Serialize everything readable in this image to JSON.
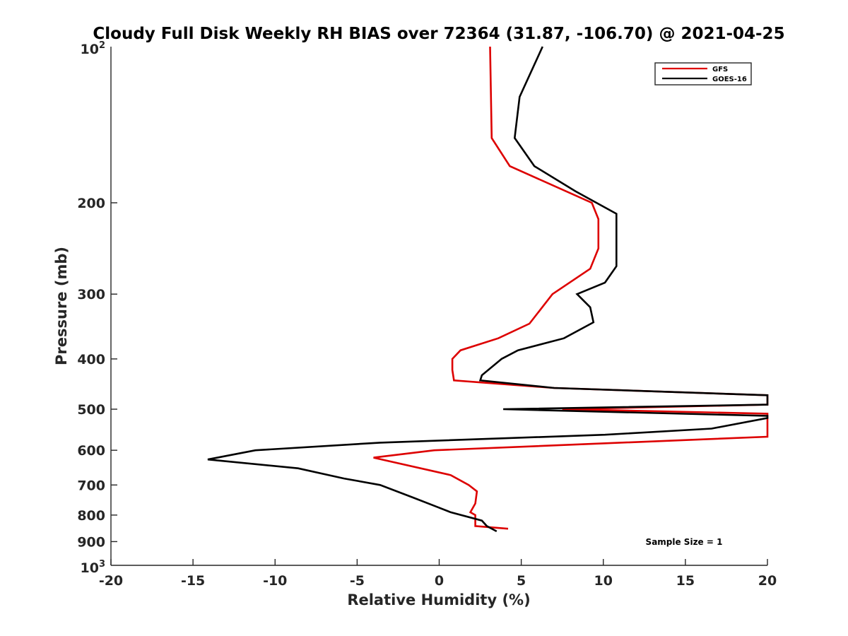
{
  "chart_data": {
    "type": "line",
    "title": "Cloudy Full Disk Weekly RH BIAS over 72364 (31.87, -106.70) @ 2021-04-25",
    "xlabel": "Relative Humidity (%)",
    "ylabel": "Pressure (mb)",
    "xlim": [
      -20,
      20
    ],
    "ylim": [
      100,
      1000
    ],
    "y_scale": "log",
    "y_reversed": true,
    "grid": false,
    "legend_position": "top-right",
    "x_ticks": [
      -20,
      -15,
      -10,
      -5,
      0,
      5,
      10,
      15,
      20
    ],
    "x_tick_labels": [
      "-20",
      "-15",
      "-10",
      "-5",
      "0",
      "5",
      "10",
      "15",
      "20"
    ],
    "y_ticks": [
      200,
      300,
      400,
      500,
      600,
      700,
      800,
      900
    ],
    "y_tick_labels": [
      "200",
      "300",
      "400",
      "500",
      "600",
      "700",
      "800",
      "900"
    ],
    "y_end_labels": {
      "top_base": "10",
      "top_exp": "2",
      "bottom_base": "10",
      "bottom_exp": "3"
    },
    "annotation": "Sample Size = 1",
    "series": [
      {
        "name": "GFS",
        "color": "#dd0000",
        "points": [
          [
            3.1,
            100
          ],
          [
            3.2,
            150
          ],
          [
            4.3,
            170
          ],
          [
            9.3,
            200
          ],
          [
            9.7,
            215
          ],
          [
            9.7,
            245
          ],
          [
            9.2,
            268
          ],
          [
            6.9,
            300
          ],
          [
            5.5,
            342
          ],
          [
            3.6,
            365
          ],
          [
            1.3,
            385
          ],
          [
            0.8,
            400
          ],
          [
            0.8,
            420
          ],
          [
            0.9,
            440
          ],
          [
            7.0,
            455
          ],
          [
            20.0,
            470
          ],
          [
            20.0,
            490
          ],
          [
            7.5,
            500
          ],
          [
            20.0,
            510
          ],
          [
            20.0,
            565
          ],
          [
            -0.3,
            600
          ],
          [
            -4.0,
            620
          ],
          [
            0.7,
            670
          ],
          [
            1.8,
            700
          ],
          [
            2.3,
            720
          ],
          [
            2.2,
            760
          ],
          [
            1.9,
            790
          ],
          [
            2.2,
            800
          ],
          [
            2.2,
            840
          ],
          [
            4.2,
            850
          ]
        ]
      },
      {
        "name": "GOES-16",
        "color": "#000000",
        "points": [
          [
            6.3,
            100
          ],
          [
            4.9,
            125
          ],
          [
            4.6,
            150
          ],
          [
            5.8,
            170
          ],
          [
            8.3,
            190
          ],
          [
            10.8,
            210
          ],
          [
            10.8,
            265
          ],
          [
            10.1,
            285
          ],
          [
            8.4,
            300
          ],
          [
            9.2,
            318
          ],
          [
            9.4,
            340
          ],
          [
            7.6,
            365
          ],
          [
            4.8,
            385
          ],
          [
            3.8,
            400
          ],
          [
            2.6,
            430
          ],
          [
            2.5,
            440
          ],
          [
            7.0,
            455
          ],
          [
            20.0,
            470
          ],
          [
            20.0,
            490
          ],
          [
            3.9,
            500
          ],
          [
            20.0,
            515
          ],
          [
            20.0,
            520
          ],
          [
            16.6,
            545
          ],
          [
            10.1,
            560
          ],
          [
            -3.6,
            580
          ],
          [
            -11.2,
            600
          ],
          [
            -14.1,
            625
          ],
          [
            -8.6,
            650
          ],
          [
            -5.8,
            680
          ],
          [
            -3.6,
            700
          ],
          [
            -1.6,
            740
          ],
          [
            -0.2,
            770
          ],
          [
            0.7,
            790
          ],
          [
            2.6,
            820
          ],
          [
            2.9,
            840
          ],
          [
            3.5,
            860
          ]
        ]
      }
    ]
  }
}
